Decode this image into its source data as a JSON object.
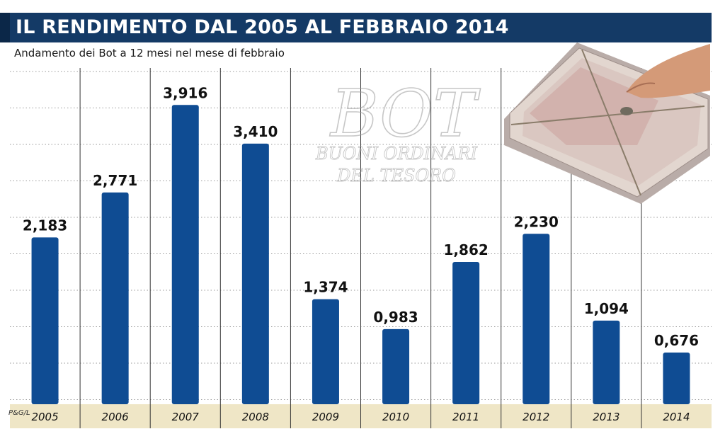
{
  "title": "IL RENDIMENTO DAL 2005 AL FEBBRAIO 2014",
  "subtitle": "Andamento dei Bot a 12 mesi nel mese di febbraio",
  "credit": "P&G/L",
  "watermark": {
    "big": "BOT",
    "line1": "BUONI ORDINARI",
    "line2": "DEL TESORO"
  },
  "colors": {
    "bar": "#0f4c93",
    "title_bg": "#143a66",
    "axis_band": "#efe6c6"
  },
  "chart_data": {
    "type": "bar",
    "title": "IL RENDIMENTO DAL 2005 AL FEBBRAIO 2014",
    "subtitle": "Andamento dei Bot a 12 mesi nel mese di febbraio",
    "categories": [
      "2005",
      "2006",
      "2007",
      "2008",
      "2009",
      "2010",
      "2011",
      "2012",
      "2013",
      "2014"
    ],
    "values": [
      2.183,
      2.771,
      3.916,
      3.41,
      1.374,
      0.983,
      1.862,
      2.23,
      1.094,
      0.676
    ],
    "value_labels": [
      "2,183",
      "2,771",
      "3,916",
      "3,410",
      "1,374",
      "0,983",
      "1,862",
      "2,230",
      "1,094",
      "0,676"
    ],
    "ylim": [
      0,
      4.4
    ],
    "grid": true
  }
}
